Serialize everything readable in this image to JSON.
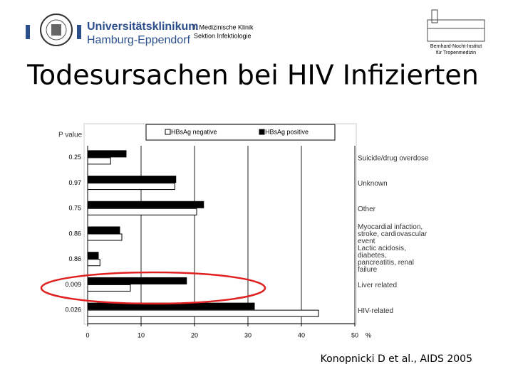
{
  "header": {
    "institution": "Universitätsklinikum",
    "institution_sub": "Hamburg-Eppendorf",
    "clinic": "I. Medizinische Klinik",
    "section": "Sektion Infektiologie",
    "institute_line1": "Bernhard-Nocht-Institut",
    "institute_line2": "für Tropenmedizin"
  },
  "slide_title": "Todesursachen bei HIV Infizierten",
  "citation": "Konopnicki D et al., AIDS 2005",
  "chart_data": {
    "type": "hbar",
    "y_label": "P value",
    "x_unit": "%",
    "categories": [
      "Suicide/drug overdose",
      "Unknown",
      "Other",
      "Myocardial infaction, stroke, cardiovascular event",
      "Lactic acidosis, diabetes, pancreatitis, renal failure",
      "Liver related",
      "HIV-related"
    ],
    "p_values": [
      0.25,
      0.97,
      0.75,
      0.86,
      0.86,
      0.009,
      0.026
    ],
    "series": [
      {
        "name": "HBsAg positive",
        "color": "#000000",
        "values": [
          7.2,
          16.5,
          21.7,
          6.0,
          2.0,
          18.5,
          31.2
        ]
      },
      {
        "name": "HBsAg negative",
        "color": "#ffffff",
        "values": [
          4.3,
          16.3,
          20.4,
          6.4,
          2.3,
          8.0,
          43.2
        ]
      }
    ],
    "xlim": [
      0,
      50
    ],
    "xticks": [
      0,
      10,
      20,
      30,
      40,
      50
    ],
    "grid": true
  }
}
